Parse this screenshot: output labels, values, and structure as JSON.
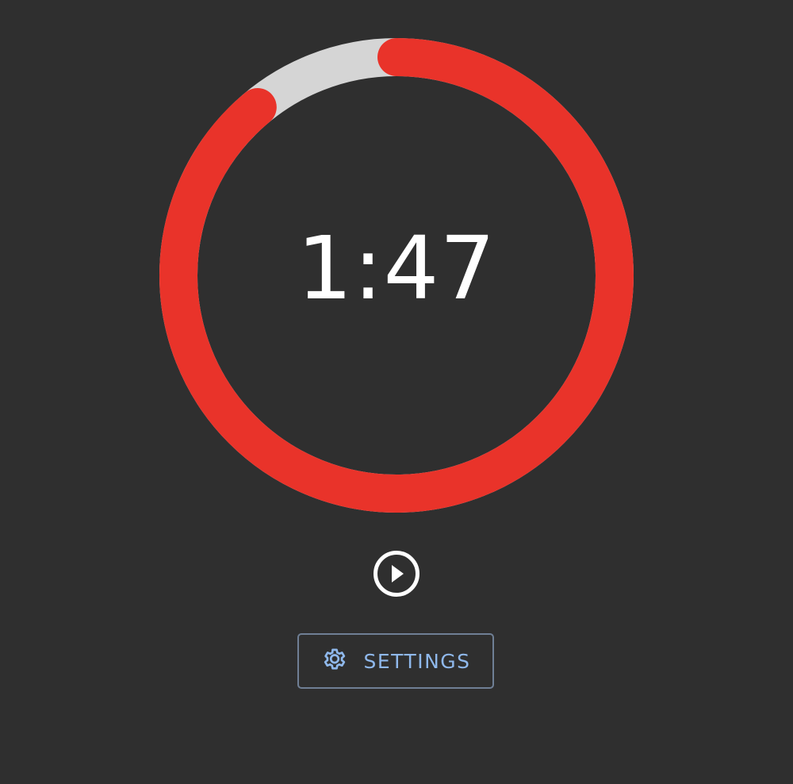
{
  "timer": {
    "time_remaining": "1:47",
    "progress_fraction_remaining": 0.89,
    "ring_color": "#e9332a",
    "track_color": "#d5d5d5"
  },
  "controls": {
    "play_icon": "play-circle-icon",
    "settings_icon": "gear-icon",
    "settings_label": "SETTINGS"
  },
  "colors": {
    "background": "#2f2f2f",
    "accent": "#8fb8eb",
    "text": "#ffffff"
  }
}
